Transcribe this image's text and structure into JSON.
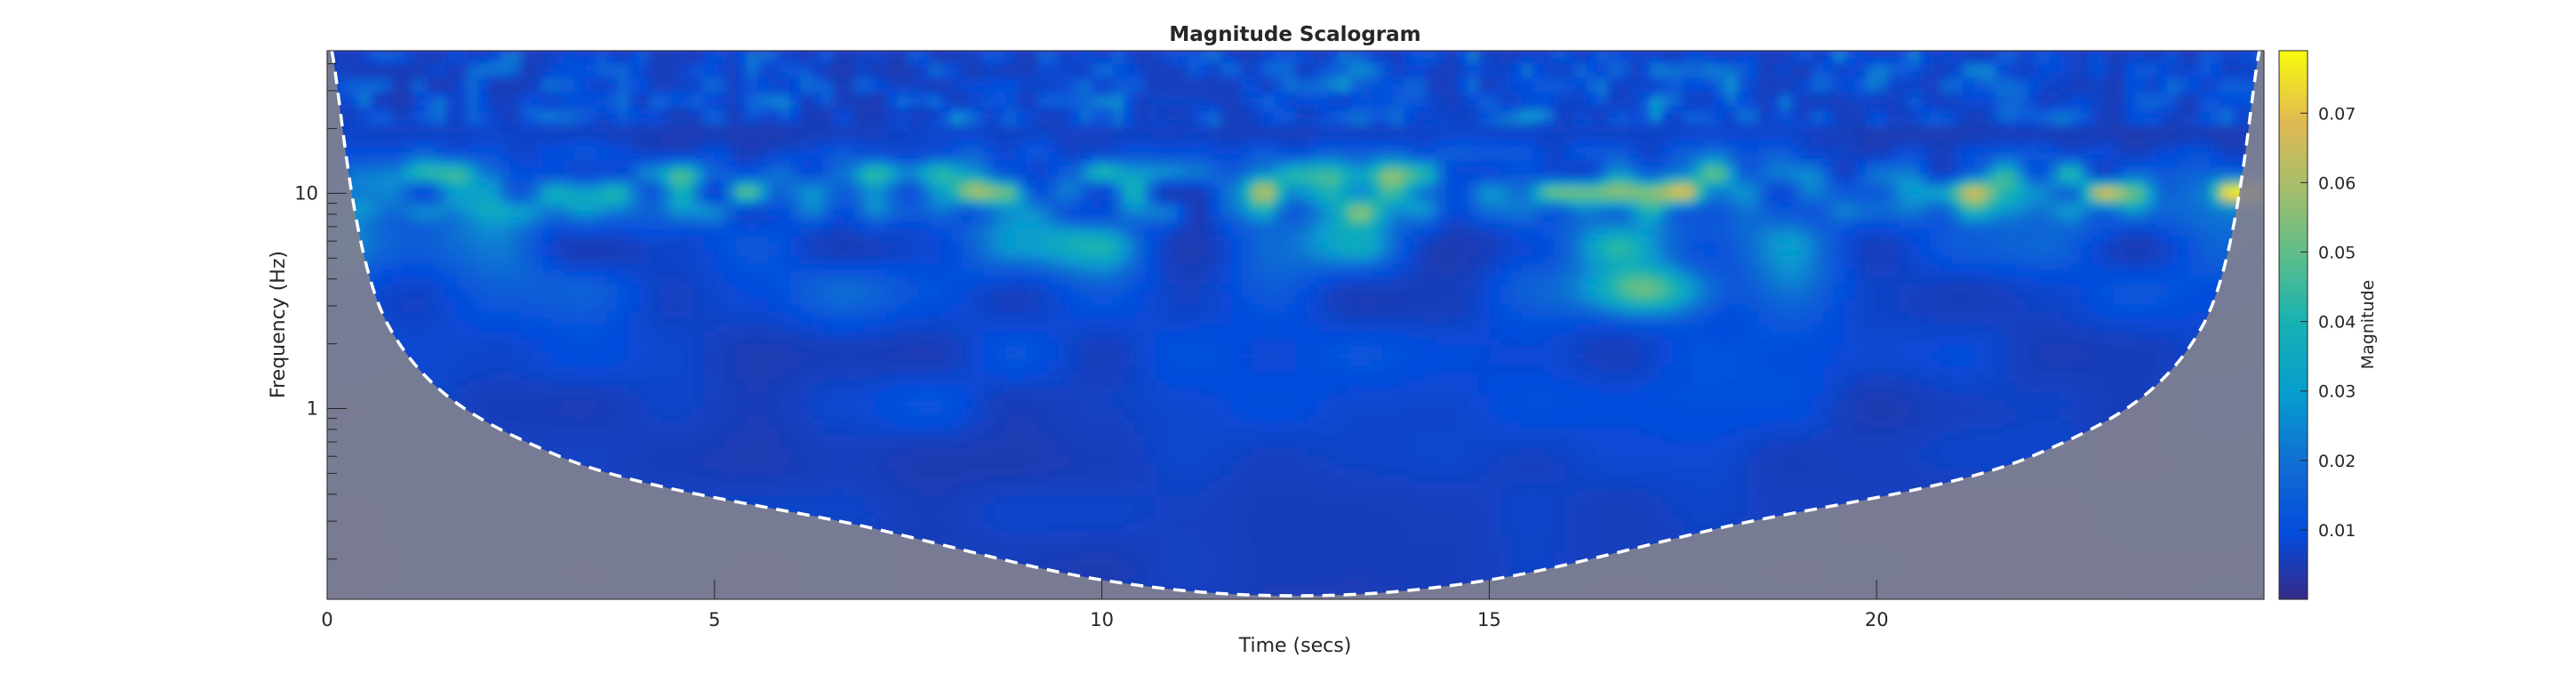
{
  "chart_data": {
    "type": "heatmap",
    "title": "Magnitude Scalogram",
    "xlabel": "Time (secs)",
    "ylabel": "Frequency (Hz)",
    "xlim": [
      0,
      25
    ],
    "ylim": [
      0.13,
      46
    ],
    "y_scale": "log",
    "x_ticks": [
      0,
      5,
      10,
      15,
      20
    ],
    "y_ticks": [
      1,
      10
    ],
    "colorbar": {
      "label": "Magnitude",
      "range": [
        0,
        0.079
      ],
      "ticks": [
        0.01,
        0.02,
        0.03,
        0.04,
        0.05,
        0.06,
        0.07
      ],
      "colormap": "parula"
    },
    "cone_of_influence": {
      "style": "dashed white",
      "shading": "#7f7f8c",
      "freqs": [
        46,
        2.4,
        0.6,
        0.28,
        0.16,
        0.135,
        0.16,
        0.28,
        0.6,
        2.4,
        46
      ],
      "times": [
        0.06,
        0.8,
        3,
        7,
        10,
        12.5,
        15,
        18,
        22,
        24.2,
        24.94
      ]
    },
    "features": [
      {
        "band": "≈8–13 Hz",
        "note": "strongest magnitude (≈0.06–0.07), intermittent bursts across the record"
      },
      {
        "time": 17,
        "freq": 3.5,
        "magnitude": 0.055
      }
    ]
  }
}
